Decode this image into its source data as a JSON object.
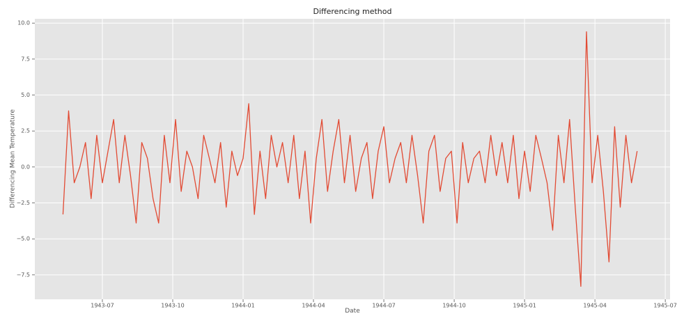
{
  "chart_data": {
    "type": "line",
    "title": "Differencing method",
    "x_label": "Date",
    "y_label": "Differencing Mean Temperature",
    "grid": true,
    "xlim": [
      1943.26,
      1945.517
    ],
    "ylim": [
      -9.2,
      10.3
    ],
    "xticks": [
      {
        "value": 1943.5,
        "label": "1943-07"
      },
      {
        "value": 1943.75,
        "label": "1943-10"
      },
      {
        "value": 1944.0,
        "label": "1944-01"
      },
      {
        "value": 1944.25,
        "label": "1944-04"
      },
      {
        "value": 1944.5,
        "label": "1944-07"
      },
      {
        "value": 1944.75,
        "label": "1944-10"
      },
      {
        "value": 1945.0,
        "label": "1945-01"
      },
      {
        "value": 1945.25,
        "label": "1945-04"
      },
      {
        "value": 1945.5,
        "label": "1945-07"
      }
    ],
    "yticks": [
      {
        "value": -7.5,
        "label": "−7.5"
      },
      {
        "value": -5,
        "label": "−5.0"
      },
      {
        "value": -2.5,
        "label": "−2.5"
      },
      {
        "value": 0,
        "label": "0.0"
      },
      {
        "value": 2.5,
        "label": "2.5"
      },
      {
        "value": 5,
        "label": "5.0"
      },
      {
        "value": 7.5,
        "label": "7.5"
      },
      {
        "value": 10,
        "label": "10.0"
      }
    ],
    "x": [
      1943.36,
      1943.38,
      1943.4,
      1943.42,
      1943.44,
      1943.46,
      1943.48,
      1943.5,
      1943.52,
      1943.54,
      1943.56,
      1943.58,
      1943.6,
      1943.62,
      1943.64,
      1943.66,
      1943.68,
      1943.7,
      1943.72,
      1943.74,
      1943.76,
      1943.78,
      1943.8,
      1943.82,
      1943.84,
      1943.86,
      1943.88,
      1943.9,
      1943.92,
      1943.94,
      1943.96,
      1943.98,
      1944.0,
      1944.02,
      1944.04,
      1944.06,
      1944.08,
      1944.1,
      1944.12,
      1944.14,
      1944.16,
      1944.18,
      1944.2,
      1944.22,
      1944.24,
      1944.26,
      1944.28,
      1944.3,
      1944.32,
      1944.34,
      1944.36,
      1944.38,
      1944.4,
      1944.42,
      1944.44,
      1944.46,
      1944.48,
      1944.5,
      1944.52,
      1944.54,
      1944.56,
      1944.58,
      1944.6,
      1944.62,
      1944.64,
      1944.66,
      1944.68,
      1944.7,
      1944.72,
      1944.74,
      1944.76,
      1944.78,
      1944.8,
      1944.82,
      1944.84,
      1944.86,
      1944.88,
      1944.9,
      1944.92,
      1944.94,
      1944.96,
      1944.98,
      1945.0,
      1945.02,
      1945.04,
      1945.06,
      1945.08,
      1945.1,
      1945.12,
      1945.14,
      1945.16,
      1945.18,
      1945.2,
      1945.22,
      1945.24,
      1945.26,
      1945.28,
      1945.3,
      1945.32,
      1945.34,
      1945.36,
      1945.38,
      1945.4
    ],
    "series": [
      {
        "color": "#e24a33",
        "values": [
          -3.3,
          3.9,
          -1.1,
          0,
          1.7,
          -2.2,
          2.2,
          -1.1,
          1.1,
          3.3,
          -1.1,
          2.2,
          -0.6,
          -3.9,
          1.7,
          0.6,
          -2.2,
          -3.9,
          2.2,
          -1.1,
          3.3,
          -1.7,
          1.1,
          0,
          -2.2,
          2.2,
          0.6,
          -1.1,
          1.7,
          -2.8,
          1.1,
          -0.6,
          0.6,
          4.4,
          -3.3,
          1.1,
          -2.2,
          2.2,
          0,
          1.7,
          -1.1,
          2.2,
          -2.2,
          1.1,
          -3.9,
          0.6,
          3.3,
          -1.7,
          1.1,
          3.3,
          -1.1,
          2.2,
          -1.7,
          0.6,
          1.7,
          -2.2,
          1.1,
          2.8,
          -1.1,
          0.6,
          1.7,
          -1.1,
          2.2,
          -0.6,
          -3.9,
          1.1,
          2.2,
          -1.7,
          0.6,
          1.1,
          -3.9,
          1.7,
          -1.1,
          0.6,
          1.1,
          -1.1,
          2.2,
          -0.6,
          1.7,
          -1.1,
          2.2,
          -2.2,
          1.1,
          -1.7,
          2.2,
          0.6,
          -1.1,
          -4.4,
          2.2,
          -1.1,
          3.3,
          -2.8,
          -8.3,
          9.4,
          -1.1,
          2.2,
          -1.7,
          -6.6,
          2.8,
          -2.8,
          2.2,
          -1.1,
          1.1
        ]
      }
    ]
  }
}
